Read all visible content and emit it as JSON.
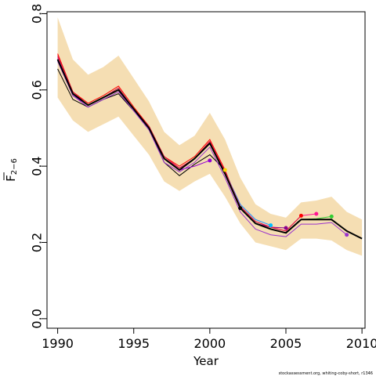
{
  "chart_data": {
    "type": "line",
    "title": "",
    "xlabel": "Year",
    "ylabel_main": "F",
    "ylabel_sub": "2−6",
    "xlim": [
      1989.3,
      2010.2
    ],
    "ylim": [
      -0.025,
      0.805
    ],
    "xticks": [
      1990,
      1995,
      2000,
      2005,
      2010
    ],
    "yticks": [
      0.0,
      0.2,
      0.4,
      0.6,
      0.8
    ],
    "ytick_labels": [
      "0.0",
      "0.2",
      "0.4",
      "0.6",
      "0.8"
    ],
    "grid": false,
    "legend": "none",
    "band": {
      "color": "#f5deb3",
      "x": [
        1990,
        1991,
        1992,
        1993,
        1994,
        1995,
        1996,
        1997,
        1998,
        1999,
        2000,
        2001,
        2002,
        2003,
        2004,
        2005,
        2006,
        2007,
        2008,
        2009,
        2010
      ],
      "lower": [
        0.58,
        0.52,
        0.49,
        0.51,
        0.53,
        0.48,
        0.43,
        0.36,
        0.335,
        0.36,
        0.38,
        0.32,
        0.25,
        0.2,
        0.19,
        0.18,
        0.21,
        0.21,
        0.205,
        0.18,
        0.165
      ],
      "upper": [
        0.79,
        0.68,
        0.64,
        0.66,
        0.69,
        0.63,
        0.57,
        0.49,
        0.455,
        0.48,
        0.54,
        0.47,
        0.37,
        0.3,
        0.275,
        0.265,
        0.305,
        0.31,
        0.32,
        0.28,
        0.26
      ]
    },
    "main_series": {
      "color": "#000000",
      "width": 2,
      "x": [
        1990,
        1991,
        1992,
        1993,
        1994,
        1995,
        1996,
        1997,
        1998,
        1999,
        2000,
        2001,
        2002,
        2003,
        2004,
        2005,
        2006,
        2007,
        2008,
        2009,
        2010
      ],
      "values": [
        0.68,
        0.59,
        0.56,
        0.58,
        0.6,
        0.55,
        0.5,
        0.42,
        0.39,
        0.42,
        0.46,
        0.38,
        0.29,
        0.25,
        0.235,
        0.225,
        0.26,
        0.26,
        0.26,
        0.23,
        0.21
      ]
    },
    "retro_series": [
      {
        "color": "#000000",
        "width": 1,
        "x": [
          1990,
          1991,
          1992,
          1993,
          1994,
          1995,
          1996,
          1997,
          1998,
          1999,
          2000,
          2001
        ],
        "values": [
          0.655,
          0.575,
          0.555,
          0.575,
          0.59,
          0.545,
          0.5,
          0.41,
          0.375,
          0.405,
          0.43,
          0.39
        ],
        "endpoint": {
          "x": 2001,
          "y": 0.39,
          "color": "#ffd700"
        }
      },
      {
        "color": "#9400d3",
        "width": 1,
        "x": [
          1990,
          1991,
          1992,
          1993,
          1994,
          1995,
          1996,
          1997,
          1998,
          1999,
          2000
        ],
        "values": [
          0.68,
          0.585,
          0.56,
          0.58,
          0.6,
          0.55,
          0.5,
          0.42,
          0.39,
          0.4,
          0.415
        ],
        "endpoint": {
          "x": 2000,
          "y": 0.415,
          "color": "#9400d3"
        }
      },
      {
        "color": "#ff0000",
        "width": 1,
        "x": [
          1990,
          1991,
          1992,
          1993,
          1994,
          1995,
          1996,
          1997,
          1998,
          1999,
          2000,
          2001,
          2002
        ],
        "values": [
          0.695,
          0.595,
          0.565,
          0.585,
          0.61,
          0.555,
          0.505,
          0.425,
          0.4,
          0.425,
          0.47,
          0.39,
          0.29
        ],
        "endpoint": {
          "x": 2002,
          "y": 0.29,
          "color": "#000000"
        }
      },
      {
        "color": "#1e90ff",
        "width": 1,
        "x": [
          1990,
          1991,
          1992,
          1993,
          1994,
          1995,
          1996,
          1997,
          1998,
          1999,
          2000,
          2001,
          2002,
          2003,
          2004
        ],
        "values": [
          0.685,
          0.59,
          0.56,
          0.58,
          0.605,
          0.55,
          0.5,
          0.42,
          0.395,
          0.42,
          0.46,
          0.385,
          0.3,
          0.26,
          0.245
        ],
        "endpoint": {
          "x": 2004,
          "y": 0.245,
          "color": "#00bfff"
        }
      },
      {
        "color": "#8b008b",
        "width": 1,
        "x": [
          1990,
          1991,
          1992,
          1993,
          1994,
          1995,
          1996,
          1997,
          1998,
          1999,
          2000,
          2001,
          2002,
          2003,
          2004,
          2005
        ],
        "values": [
          0.68,
          0.59,
          0.56,
          0.58,
          0.6,
          0.55,
          0.5,
          0.42,
          0.39,
          0.42,
          0.46,
          0.38,
          0.29,
          0.25,
          0.24,
          0.238
        ],
        "endpoint": {
          "x": 2005,
          "y": 0.238,
          "color": "#8b008b"
        }
      },
      {
        "color": "#ff1493",
        "width": 1,
        "x": [
          1990,
          1991,
          1992,
          1993,
          1994,
          1995,
          1996,
          1997,
          1998,
          1999,
          2000,
          2001,
          2002,
          2003,
          2004,
          2005,
          2006,
          2007
        ],
        "values": [
          0.685,
          0.59,
          0.56,
          0.58,
          0.6,
          0.55,
          0.5,
          0.42,
          0.395,
          0.42,
          0.465,
          0.385,
          0.295,
          0.255,
          0.24,
          0.23,
          0.27,
          0.275
        ],
        "endpoint": {
          "x": 2007,
          "y": 0.275,
          "color": "#ff1493"
        }
      },
      {
        "color": "#dc143c",
        "width": 1,
        "x": [
          1990,
          1991,
          1992,
          1993,
          1994,
          1995,
          1996,
          1997,
          1998,
          1999,
          2000,
          2001,
          2002,
          2003,
          2004,
          2005,
          2006
        ],
        "values": [
          0.69,
          0.595,
          0.56,
          0.58,
          0.605,
          0.55,
          0.505,
          0.425,
          0.395,
          0.42,
          0.465,
          0.385,
          0.295,
          0.255,
          0.24,
          0.23,
          0.27
        ],
        "endpoint": {
          "x": 2006,
          "y": 0.27,
          "color": "#ff0000"
        }
      },
      {
        "color": "#32cd32",
        "width": 1,
        "x": [
          1990,
          1991,
          1992,
          1993,
          1994,
          1995,
          1996,
          1997,
          1998,
          1999,
          2000,
          2001,
          2002,
          2003,
          2004,
          2005,
          2006,
          2007,
          2008
        ],
        "values": [
          0.68,
          0.59,
          0.56,
          0.58,
          0.6,
          0.55,
          0.5,
          0.42,
          0.39,
          0.42,
          0.46,
          0.38,
          0.29,
          0.25,
          0.235,
          0.225,
          0.26,
          0.262,
          0.268
        ],
        "endpoint": {
          "x": 2008,
          "y": 0.268,
          "color": "#32cd32"
        }
      },
      {
        "color": "#9932cc",
        "width": 1,
        "x": [
          1990,
          1991,
          1992,
          1993,
          1994,
          1995,
          1996,
          1997,
          1998,
          1999,
          2000,
          2001,
          2002,
          2003,
          2004,
          2005,
          2006,
          2007,
          2008,
          2009
        ],
        "values": [
          0.675,
          0.585,
          0.555,
          0.575,
          0.595,
          0.545,
          0.495,
          0.41,
          0.385,
          0.41,
          0.45,
          0.37,
          0.28,
          0.235,
          0.22,
          0.215,
          0.248,
          0.248,
          0.252,
          0.22
        ],
        "endpoint": {
          "x": 2009,
          "y": 0.22,
          "color": "#9932cc"
        }
      }
    ],
    "credit": "stockassessment.org, whiting-coby-short, r1346"
  }
}
